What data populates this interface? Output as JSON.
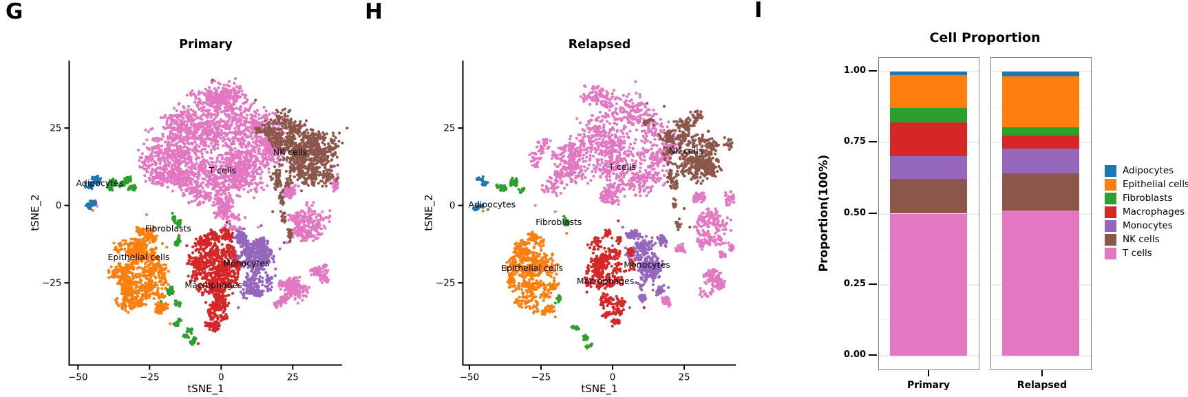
{
  "panels": {
    "g": {
      "letter": "G"
    },
    "h": {
      "letter": "H"
    },
    "i": {
      "letter": "I",
      "title": "Cell Proportion",
      "ylabel": "Proportion(100%)",
      "categories": [
        "Primary",
        "Relapsed"
      ],
      "y_tick_labels": [
        "1.00",
        "0.75",
        "0.50",
        "0.25",
        "0.00"
      ]
    }
  },
  "colors": {
    "Adipocytes": "#1f77b4",
    "Epithelial cells": "#ff7f0e",
    "Fibroblasts": "#2ca02c",
    "Macrophages": "#d62728",
    "Monocytes": "#9467bd",
    "NK cells": "#8c564b",
    "T cells": "#e377c2"
  },
  "legend": {
    "items": [
      "Adipocytes",
      "Epithelial cells",
      "Fibroblasts",
      "Macrophages",
      "Monocytes",
      "NK cells",
      "T cells"
    ]
  },
  "chart_data": [
    {
      "id": "tsne_primary",
      "type": "scatter",
      "title": "Primary",
      "xlabel": "tSNE_1",
      "ylabel": "tSNE_2",
      "x_ticks": [
        -50,
        -25,
        0,
        25
      ],
      "x_tick_labels": [
        "−50",
        "−25",
        "0",
        "25"
      ],
      "y_ticks": [
        25,
        0,
        -25
      ],
      "y_tick_labels": [
        "25",
        "0",
        "−25"
      ],
      "xlim": [
        -52.8,
        42.3
      ],
      "ylim": [
        -51.7,
        45.6
      ],
      "cluster_labels": [
        {
          "text": "Adipocytes",
          "x": -42.4,
          "y": 7.1
        },
        {
          "text": "Fibroblasts",
          "x": -18.5,
          "y": -7.5
        },
        {
          "text": "Epithelial cells",
          "x": -28.8,
          "y": -16.8
        },
        {
          "text": "T cells",
          "x": 0.5,
          "y": 11.2
        },
        {
          "text": "NK cells",
          "x": 24.1,
          "y": 17.1
        },
        {
          "text": "Monocytes",
          "x": 8.8,
          "y": -18.8
        },
        {
          "text": "Macrophages",
          "x": -2.7,
          "y": -25.7
        }
      ],
      "blobs": {
        "T cells": [
          [
            -14,
            20,
            14,
            12,
            520
          ],
          [
            2,
            27,
            15,
            11,
            520
          ],
          [
            8,
            13,
            14,
            10,
            500
          ],
          [
            -7,
            7,
            11,
            8,
            380
          ],
          [
            -20,
            13,
            8,
            7,
            230
          ],
          [
            16,
            22,
            9,
            8,
            260
          ],
          [
            -1,
            36,
            10,
            4,
            150
          ],
          [
            0,
            -1,
            5,
            5,
            120
          ],
          [
            31,
            -5.5,
            8,
            6,
            230
          ],
          [
            27,
            -27,
            6.5,
            5.5,
            170
          ],
          [
            35,
            -21,
            4,
            4,
            80
          ],
          [
            20.5,
            -31,
            3.2,
            2.8,
            60
          ],
          [
            40,
            8,
            1.5,
            6,
            30
          ],
          [
            5,
            -6,
            9,
            3,
            45
          ],
          [
            24,
            6,
            5,
            4,
            60
          ]
        ],
        "NK cells": [
          [
            27,
            19,
            10,
            8,
            330
          ],
          [
            31,
            12,
            10,
            7,
            280
          ],
          [
            22,
            25,
            7,
            6,
            160
          ],
          [
            36,
            20,
            6,
            6,
            130
          ],
          [
            21,
            9,
            4,
            5,
            70
          ],
          [
            21,
            0,
            2,
            6,
            40
          ],
          [
            24,
            -9,
            1.5,
            4,
            18
          ],
          [
            14,
            25,
            4,
            3,
            40
          ]
        ],
        "Monocytes": [
          [
            11,
            -17,
            7,
            7,
            280
          ],
          [
            13,
            -24,
            6,
            5,
            150
          ],
          [
            8,
            -11,
            5,
            3.5,
            80
          ],
          [
            16,
            -13,
            4,
            3.5,
            70
          ],
          [
            10,
            -28.5,
            4,
            3,
            50
          ]
        ],
        "Macrophages": [
          [
            -4,
            -15.5,
            7,
            5.5,
            200
          ],
          [
            -2,
            -23,
            8,
            7,
            300
          ],
          [
            -2.5,
            -31.5,
            6,
            5,
            160
          ],
          [
            -1,
            -37.5,
            4.5,
            3,
            80
          ],
          [
            0,
            -9.5,
            4.5,
            3.5,
            80
          ],
          [
            -8.5,
            -20,
            4,
            5,
            90
          ],
          [
            3.5,
            -18,
            4,
            5,
            90
          ]
        ],
        "Epithelial cells": [
          [
            -30,
            -12.5,
            7,
            5,
            180
          ],
          [
            -28,
            -20,
            9,
            7,
            330
          ],
          [
            -30,
            -29.5,
            7,
            5,
            170
          ],
          [
            -23.5,
            -26.5,
            5,
            4.5,
            120
          ],
          [
            -35,
            -22,
            4,
            5,
            90
          ],
          [
            -22,
            -33.5,
            4,
            3,
            60
          ],
          [
            -26,
            -9,
            4,
            3,
            60
          ]
        ],
        "Fibroblasts": [
          [
            -37.5,
            6,
            3,
            2.5,
            55
          ],
          [
            -34,
            7.5,
            3,
            2.5,
            55
          ],
          [
            -31.5,
            5,
            2,
            2,
            30
          ],
          [
            -15.5,
            -5,
            1.7,
            2.7,
            32
          ],
          [
            -15.2,
            -10.5,
            1.6,
            2.3,
            24
          ],
          [
            -17.5,
            -28.5,
            2,
            3,
            38
          ],
          [
            -15.5,
            -31.5,
            1.5,
            1.8,
            16
          ],
          [
            -15,
            -38.5,
            2,
            1.8,
            22
          ],
          [
            -12,
            -41.2,
            2.4,
            1.8,
            28
          ],
          [
            -9.2,
            -43.8,
            2,
            1.5,
            22
          ]
        ],
        "Adipocytes": [
          [
            -45,
            7.2,
            3.3,
            2.6,
            60
          ],
          [
            -46,
            0,
            3,
            2.2,
            45
          ]
        ]
      },
      "singles": {
        "T cells": [
          [
            -43.4,
            -0.2
          ],
          [
            5,
            41
          ],
          [
            -26,
            -3
          ],
          [
            13,
            -7
          ],
          [
            23,
            -12
          ]
        ],
        "NK cells": [
          [
            -3,
            40.5
          ],
          [
            12,
            34
          ],
          [
            44,
            25
          ],
          [
            18,
            -2
          ],
          [
            22,
            -12
          ]
        ],
        "Monocytes": [
          [
            3,
            -6
          ],
          [
            8,
            -7.5
          ],
          [
            14,
            -6.5
          ],
          [
            20.5,
            -14
          ],
          [
            19,
            -20.5
          ],
          [
            6,
            -33
          ]
        ],
        "Macrophages": [
          [
            -14.7,
            -9.7
          ],
          [
            -14.9,
            -11.8
          ],
          [
            -8,
            -44.6
          ],
          [
            2,
            -5.5
          ],
          [
            -12,
            -13
          ]
        ],
        "Epithelial cells": [
          [
            -20.5,
            -12.3
          ],
          [
            -19,
            -13.5
          ],
          [
            -17.8,
            -38.2
          ],
          [
            -44.8,
            -1.6
          ]
        ],
        "Fibroblasts": [
          [
            -17,
            -2.5
          ],
          [
            -21,
            -31
          ]
        ]
      }
    },
    {
      "id": "tsne_relapsed",
      "type": "scatter",
      "title": "Relapsed",
      "xlabel": "tSNE_1",
      "ylabel": "tSNE_2",
      "x_ticks": [
        -50,
        -25,
        0,
        25
      ],
      "x_tick_labels": [
        "−50",
        "−25",
        "0",
        "25"
      ],
      "y_ticks": [
        25,
        0,
        -25
      ],
      "y_tick_labels": [
        "25",
        "0",
        "−25"
      ],
      "xlim": [
        -52.3,
        43.0
      ],
      "ylim": [
        -51.7,
        45.6
      ],
      "cluster_labels": [
        {
          "text": "Adipocytes",
          "x": -42.1,
          "y": 0.2
        },
        {
          "text": "Fibroblasts",
          "x": -18.8,
          "y": -5.4
        },
        {
          "text": "Epithelial cells",
          "x": -28.1,
          "y": -20.3
        },
        {
          "text": "T cells",
          "x": 3.4,
          "y": 12.4
        },
        {
          "text": "NK cells",
          "x": 25.6,
          "y": 17.6
        },
        {
          "text": "Monocytes",
          "x": 12.0,
          "y": -19.2
        },
        {
          "text": "Macrophages",
          "x": -2.5,
          "y": -24.5
        }
      ],
      "blobs": {
        "T cells": [
          [
            -10,
            18,
            12,
            10,
            300
          ],
          [
            3,
            26,
            14,
            10,
            300
          ],
          [
            7,
            12,
            12,
            9,
            280
          ],
          [
            -18,
            10,
            8,
            7,
            120
          ],
          [
            -2,
            36,
            9,
            4,
            80
          ],
          [
            16,
            20,
            8,
            7,
            150
          ],
          [
            0,
            2,
            6,
            5,
            90
          ],
          [
            -24,
            15,
            5,
            6,
            50
          ],
          [
            35,
            -8,
            7,
            6.5,
            180
          ],
          [
            33,
            -25,
            6,
            5,
            110
          ],
          [
            19,
            -31,
            3.5,
            3,
            45
          ],
          [
            40,
            -15,
            2.5,
            3.5,
            35
          ],
          [
            25,
            -14,
            3,
            4,
            28
          ],
          [
            40.5,
            2,
            2,
            5,
            30
          ],
          [
            28,
            2,
            4,
            4,
            40
          ]
        ],
        "NK cells": [
          [
            27,
            17,
            10,
            8,
            260
          ],
          [
            32,
            12,
            8,
            6,
            130
          ],
          [
            23,
            24,
            7,
            5,
            90
          ],
          [
            37,
            21,
            5,
            5,
            60
          ],
          [
            20,
            6,
            3,
            5,
            35
          ],
          [
            22,
            -3,
            2,
            5,
            25
          ],
          [
            30,
            30,
            5,
            3,
            30
          ],
          [
            14,
            27,
            3,
            3,
            15
          ]
        ],
        "Monocytes": [
          [
            11,
            -17.5,
            7.5,
            7,
            230
          ],
          [
            13.5,
            -24.5,
            5.5,
            4.5,
            90
          ],
          [
            8,
            -11,
            4.5,
            3,
            45
          ],
          [
            16.5,
            -12.5,
            3.5,
            3,
            35
          ],
          [
            11,
            -28.5,
            3.5,
            2.5,
            30
          ]
        ],
        "Macrophages": [
          [
            -4.5,
            -15,
            6.5,
            5,
            120
          ],
          [
            -1.5,
            -22,
            7,
            6,
            140
          ],
          [
            -6,
            -25,
            4,
            4,
            60
          ],
          [
            1,
            -31.5,
            5,
            4.5,
            90
          ],
          [
            -0.5,
            -36.5,
            3.5,
            2.5,
            40
          ],
          [
            0.5,
            -9.5,
            3.5,
            3,
            35
          ],
          [
            6,
            -17,
            3,
            4,
            35
          ]
        ],
        "Epithelial cells": [
          [
            -30,
            -13,
            6,
            4.5,
            110
          ],
          [
            -28,
            -20.5,
            8.5,
            7,
            270
          ],
          [
            -29.5,
            -29.5,
            6,
            5,
            120
          ],
          [
            -23.5,
            -26.5,
            4.5,
            4,
            70
          ],
          [
            -34.5,
            -22,
            3.5,
            4.5,
            55
          ],
          [
            -22.5,
            -33.5,
            3.5,
            2.5,
            35
          ],
          [
            -25.5,
            -9.5,
            3.5,
            2.5,
            35
          ]
        ],
        "Fibroblasts": [
          [
            -38,
            5.5,
            2.6,
            2,
            28
          ],
          [
            -34,
            6.5,
            3,
            2.4,
            32
          ],
          [
            -31.5,
            4,
            1.6,
            1.6,
            14
          ],
          [
            -16.5,
            -7,
            1.8,
            2.6,
            24
          ],
          [
            -13,
            -40,
            2,
            1.6,
            16
          ],
          [
            -11,
            -42.8,
            2.2,
            1.6,
            18
          ],
          [
            -8.6,
            -45,
            1.6,
            1.3,
            13
          ],
          [
            -19,
            -30,
            1.5,
            2,
            14
          ]
        ],
        "Adipocytes": [
          [
            -45.5,
            7.5,
            2.6,
            2,
            30
          ],
          [
            -46,
            -0.5,
            2.6,
            1.6,
            22
          ]
        ]
      },
      "singles": {
        "T cells": [
          [
            -27,
            0
          ],
          [
            -20,
            -2
          ],
          [
            8,
            40
          ],
          [
            24,
            -6
          ]
        ],
        "NK cells": [
          [
            12,
            33
          ],
          [
            18,
            32
          ],
          [
            25,
            -1
          ],
          [
            27,
            -7
          ]
        ],
        "Monocytes": [
          [
            3.5,
            -7
          ],
          [
            19.5,
            -26.5
          ],
          [
            6,
            -33
          ],
          [
            0,
            -13
          ]
        ],
        "Macrophages": [
          [
            2,
            -5
          ],
          [
            -9,
            -28
          ],
          [
            11,
            -33
          ]
        ],
        "Epithelial cells": [
          [
            -45.3,
            -1.8
          ],
          [
            -20,
            -36
          ],
          [
            -16,
            -9
          ]
        ],
        "Fibroblasts": [
          [
            -43.5,
            -1.3
          ],
          [
            -17,
            -3.5
          ],
          [
            -20,
            -31.5
          ]
        ]
      }
    },
    {
      "id": "cell_proportion",
      "type": "bar",
      "stacked": true,
      "title": "Cell Proportion",
      "xlabel": "",
      "ylabel": "Proportion(100%)",
      "categories": [
        "Primary",
        "Relapsed"
      ],
      "y_ticks": [
        1.0,
        0.75,
        0.5,
        0.25,
        0.0
      ],
      "ylim": [
        0,
        1
      ],
      "grid": true,
      "legend_position": "right",
      "stack_order_bottom_to_top": [
        "T cells",
        "NK cells",
        "Monocytes",
        "Macrophages",
        "Fibroblasts",
        "Epithelial cells",
        "Adipocytes"
      ],
      "series": [
        {
          "name": "Adipocytes",
          "values": [
            0.013,
            0.018
          ]
        },
        {
          "name": "Epithelial cells",
          "values": [
            0.115,
            0.178
          ]
        },
        {
          "name": "Fibroblasts",
          "values": [
            0.052,
            0.028
          ]
        },
        {
          "name": "Macrophages",
          "values": [
            0.118,
            0.047
          ]
        },
        {
          "name": "Monocytes",
          "values": [
            0.079,
            0.087
          ]
        },
        {
          "name": "NK cells",
          "values": [
            0.123,
            0.13
          ]
        },
        {
          "name": "T cells",
          "values": [
            0.5,
            0.512
          ]
        }
      ]
    }
  ]
}
